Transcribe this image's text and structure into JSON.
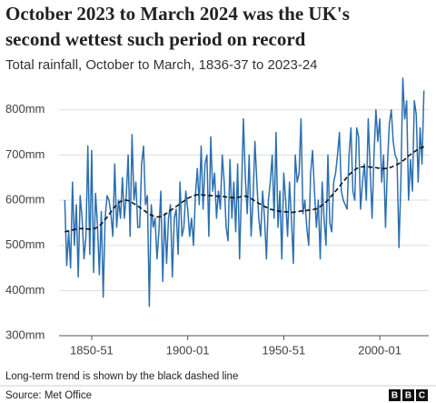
{
  "chart_data": {
    "type": "line",
    "title": [
      "October 2023 to March 2024 was the UK's",
      "second wettest such period on record"
    ],
    "subtitle": "Total rainfall, October to March, 1836-37 to 2023-24",
    "note": "Long-term trend is shown by the black dashed line",
    "source": "Source: Met Office",
    "logo": [
      "B",
      "B",
      "C"
    ],
    "x": [
      1836,
      1837,
      1838,
      1839,
      1840,
      1841,
      1842,
      1843,
      1844,
      1845,
      1846,
      1847,
      1848,
      1849,
      1850,
      1851,
      1852,
      1853,
      1854,
      1855,
      1856,
      1857,
      1858,
      1859,
      1860,
      1861,
      1862,
      1863,
      1864,
      1865,
      1866,
      1867,
      1868,
      1869,
      1870,
      1871,
      1872,
      1873,
      1874,
      1875,
      1876,
      1877,
      1878,
      1879,
      1880,
      1881,
      1882,
      1883,
      1884,
      1885,
      1886,
      1887,
      1888,
      1889,
      1890,
      1891,
      1892,
      1893,
      1894,
      1895,
      1896,
      1897,
      1898,
      1899,
      1900,
      1901,
      1902,
      1903,
      1904,
      1905,
      1906,
      1907,
      1908,
      1909,
      1910,
      1911,
      1912,
      1913,
      1914,
      1915,
      1916,
      1917,
      1918,
      1919,
      1920,
      1921,
      1922,
      1923,
      1924,
      1925,
      1926,
      1927,
      1928,
      1929,
      1930,
      1931,
      1932,
      1933,
      1934,
      1935,
      1936,
      1937,
      1938,
      1939,
      1940,
      1941,
      1942,
      1943,
      1944,
      1945,
      1946,
      1947,
      1948,
      1949,
      1950,
      1951,
      1952,
      1953,
      1954,
      1955,
      1956,
      1957,
      1958,
      1959,
      1960,
      1961,
      1962,
      1963,
      1964,
      1965,
      1966,
      1967,
      1968,
      1969,
      1970,
      1971,
      1972,
      1973,
      1974,
      1975,
      1976,
      1977,
      1978,
      1979,
      1980,
      1981,
      1982,
      1983,
      1984,
      1985,
      1986,
      1987,
      1988,
      1989,
      1990,
      1991,
      1992,
      1993,
      1994,
      1995,
      1996,
      1997,
      1998,
      1999,
      2000,
      2001,
      2002,
      2003,
      2004,
      2005,
      2006,
      2007,
      2008,
      2009,
      2010,
      2011,
      2012,
      2013,
      2014,
      2015,
      2016,
      2017,
      2018,
      2019,
      2020,
      2021,
      2022,
      2023
    ],
    "series": [
      {
        "color": "#2b6fb0",
        "style": "solid",
        "values": [
          600,
          455,
          530,
          450,
          640,
          500,
          590,
          430,
          610,
          560,
          470,
          520,
          720,
          480,
          710,
          440,
          615,
          545,
          435,
          575,
          385,
          560,
          610,
          600,
          570,
          520,
          680,
          540,
          600,
          560,
          650,
          560,
          610,
          700,
          520,
          745,
          600,
          640,
          540,
          540,
          680,
          720,
          590,
          610,
          365,
          590,
          540,
          560,
          470,
          530,
          620,
          420,
          570,
          460,
          560,
          590,
          430,
          560,
          580,
          480,
          640,
          520,
          540,
          620,
          580,
          520,
          560,
          500,
          610,
          670,
          590,
          720,
          580,
          680,
          700,
          520,
          740,
          620,
          660,
          560,
          620,
          580,
          700,
          640,
          540,
          510,
          690,
          560,
          640,
          530,
          680,
          470,
          620,
          780,
          650,
          570,
          700,
          520,
          600,
          730,
          640,
          560,
          520,
          620,
          560,
          470,
          600,
          640,
          700,
          560,
          750,
          540,
          620,
          470,
          660,
          600,
          520,
          640,
          560,
          460,
          700,
          640,
          660,
          780,
          570,
          600,
          540,
          500,
          660,
          710,
          620,
          540,
          600,
          470,
          640,
          560,
          500,
          700,
          550,
          530,
          640,
          660,
          700,
          750,
          620,
          600,
          590,
          580,
          700,
          760,
          620,
          600,
          760,
          740,
          580,
          640,
          680,
          600,
          780,
          670,
          560,
          700,
          800,
          730,
          780,
          640,
          700,
          540,
          680,
          770,
          800,
          730,
          700,
          690,
          495,
          640,
          870,
          780,
          820,
          600,
          690,
          620,
          820,
          790,
          640,
          760,
          680,
          843
        ]
      },
      {
        "color": "#111111",
        "style": "dashed",
        "values": [
          530,
          531,
          532,
          533,
          534,
          535,
          536,
          537,
          537,
          537,
          537,
          537,
          536,
          536,
          536,
          537,
          538,
          540,
          543,
          547,
          552,
          557,
          562,
          568,
          574,
          580,
          585,
          590,
          594,
          597,
          599,
          600,
          600,
          599,
          597,
          595,
          592,
          590,
          587,
          584,
          581,
          578,
          575,
          572,
          569,
          567,
          565,
          564,
          563,
          563,
          564,
          566,
          568,
          571,
          574,
          577,
          580,
          583,
          586,
          589,
          592,
          595,
          598,
          601,
          604,
          606,
          608,
          610,
          611,
          612,
          612,
          612,
          611,
          611,
          610,
          610,
          610,
          610,
          609,
          609,
          609,
          608,
          608,
          608,
          607,
          607,
          606,
          606,
          605,
          605,
          606,
          607,
          608,
          609,
          609,
          608,
          606,
          604,
          601,
          598,
          596,
          593,
          591,
          588,
          586,
          584,
          582,
          580,
          579,
          578,
          577,
          576,
          575,
          575,
          575,
          574,
          574,
          573,
          573,
          573,
          574,
          575,
          575,
          576,
          576,
          577,
          577,
          578,
          578,
          579,
          580,
          581,
          583,
          586,
          589,
          592,
          596,
          600,
          605,
          610,
          615,
          620,
          625,
          630,
          636,
          641,
          646,
          651,
          656,
          660,
          664,
          667,
          670,
          672,
          673,
          674,
          674,
          674,
          674,
          673,
          673,
          672,
          672,
          671,
          671,
          670,
          670,
          670,
          671,
          672,
          673,
          675,
          677,
          679,
          681,
          684,
          687,
          690,
          694,
          698,
          701,
          704,
          707,
          710,
          713,
          715,
          717,
          718
        ]
      }
    ],
    "xlim": [
      1833,
      2025.5
    ],
    "xticks": [
      {
        "value": 1850,
        "label": "1850-51"
      },
      {
        "value": 1900,
        "label": "1900-01"
      },
      {
        "value": 1950,
        "label": "1950-51"
      },
      {
        "value": 2000,
        "label": "2000-01"
      }
    ],
    "ylim": [
      300,
      880
    ],
    "yticks": [
      {
        "value": 300,
        "label": "300mm"
      },
      {
        "value": 400,
        "label": "400mm"
      },
      {
        "value": 500,
        "label": "500mm"
      },
      {
        "value": 600,
        "label": "600mm"
      },
      {
        "value": 700,
        "label": "700mm"
      },
      {
        "value": 800,
        "label": "800mm"
      }
    ],
    "grid": true
  }
}
